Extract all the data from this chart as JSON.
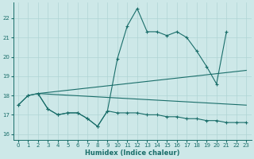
{
  "xlabel": "Humidex (Indice chaleur)",
  "bg_color": "#cde8e8",
  "line_color": "#1a6e6a",
  "grid_color": "#afd4d4",
  "xlim": [
    -0.5,
    23.5
  ],
  "ylim": [
    15.7,
    22.8
  ],
  "yticks": [
    16,
    17,
    18,
    19,
    20,
    21,
    22
  ],
  "xticks": [
    0,
    1,
    2,
    3,
    4,
    5,
    6,
    7,
    8,
    9,
    10,
    11,
    12,
    13,
    14,
    15,
    16,
    17,
    18,
    19,
    20,
    21,
    22,
    23
  ],
  "series": [
    {
      "x": [
        0,
        1,
        2,
        3,
        4,
        5,
        6,
        7,
        8,
        9,
        10,
        11,
        12,
        13,
        14,
        15,
        16,
        17,
        18,
        19,
        20,
        21
      ],
      "y": [
        17.5,
        18.0,
        18.1,
        17.3,
        17.0,
        17.1,
        17.1,
        16.8,
        16.4,
        17.2,
        19.9,
        21.6,
        22.5,
        21.3,
        21.3,
        21.1,
        21.3,
        21.0,
        20.3,
        19.5,
        18.6,
        21.3
      ],
      "marker": true
    },
    {
      "x": [
        0,
        1,
        2,
        3,
        4,
        5,
        6,
        7,
        8,
        9,
        10,
        11,
        12,
        13,
        14,
        15,
        16,
        17,
        18,
        19,
        20,
        21,
        22,
        23
      ],
      "y": [
        17.5,
        18.0,
        18.1,
        17.3,
        17.0,
        17.1,
        17.1,
        16.8,
        16.4,
        17.2,
        17.1,
        17.1,
        17.1,
        17.0,
        17.0,
        16.9,
        16.9,
        16.8,
        16.8,
        16.7,
        16.7,
        16.6,
        16.6,
        16.6
      ],
      "marker": true
    },
    {
      "x": [
        2,
        23
      ],
      "y": [
        18.1,
        19.3
      ],
      "marker": false
    },
    {
      "x": [
        2,
        23
      ],
      "y": [
        18.1,
        17.5
      ],
      "marker": false
    }
  ]
}
